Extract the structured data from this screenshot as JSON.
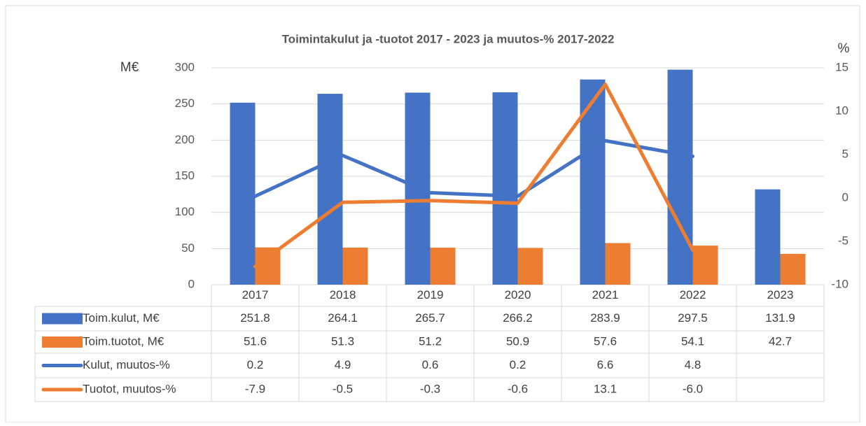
{
  "chart_data": {
    "type": "bar",
    "title": "Toimintakulut ja -tuotot 2017 - 2023 ja muutos-% 2017-2022",
    "y_label": "M€",
    "y2_label": "%",
    "categories": [
      "2017",
      "2018",
      "2019",
      "2020",
      "2021",
      "2022",
      "2023"
    ],
    "series": [
      {
        "name": "Toim.kulut, M€",
        "type": "bar",
        "color": "#4472c4",
        "values": [
          251.8,
          264.1,
          265.7,
          266.2,
          283.9,
          297.5,
          131.9
        ]
      },
      {
        "name": "Toim.tuotot, M€",
        "type": "bar",
        "color": "#ed7d31",
        "values": [
          51.6,
          51.3,
          51.2,
          50.9,
          57.6,
          54.1,
          42.7
        ]
      },
      {
        "name": "Kulut, muutos-%",
        "type": "line",
        "axis": "y2",
        "color": "#4472c4",
        "values": [
          0.2,
          4.9,
          0.6,
          0.2,
          6.6,
          4.8,
          null
        ]
      },
      {
        "name": "Tuotot, muutos-%",
        "type": "line",
        "axis": "y2",
        "color": "#ed7d31",
        "values": [
          -7.9,
          -0.5,
          -0.3,
          -0.6,
          13.1,
          -6,
          null
        ],
        "value_labels": [
          "-7.9",
          "-0.5",
          "-0.3",
          "-0.6",
          "13.1",
          "-6.0",
          null
        ]
      }
    ],
    "ylim": [
      0,
      300
    ],
    "yticks": [
      0,
      50,
      100,
      150,
      200,
      250,
      300
    ],
    "y2lim": [
      -10,
      15
    ],
    "y2ticks": [
      -10,
      -5,
      0,
      5,
      10,
      15
    ],
    "grid": true
  }
}
